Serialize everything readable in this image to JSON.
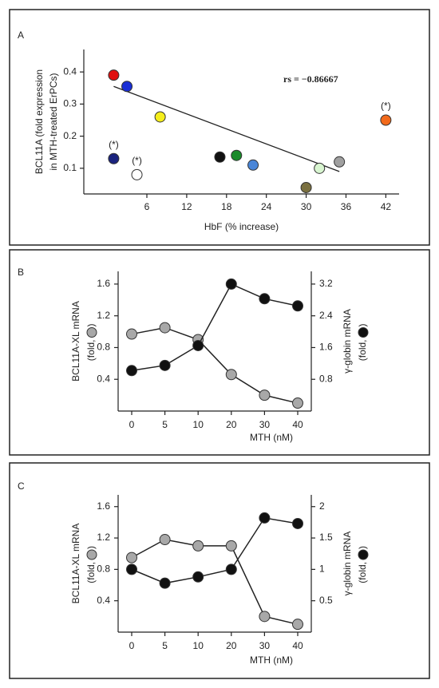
{
  "chart_data": [
    {
      "type": "scatter",
      "panel": "A",
      "annotation": "rs = −0.86667",
      "xlabel": "HbF (% increase)",
      "ylabel_lines": [
        "BCL11A (fold expression",
        "in MTH-treated ErPCs)"
      ],
      "x": [
        1,
        3,
        1,
        4.5,
        8,
        17,
        19.5,
        22,
        30,
        32,
        35,
        42
      ],
      "y": [
        0.39,
        0.355,
        0.13,
        0.08,
        0.26,
        0.135,
        0.14,
        0.11,
        0.04,
        0.1,
        0.12,
        0.25
      ],
      "colors": [
        "#e01010",
        "#1a2fd6",
        "#1a237e",
        "#ffffff",
        "#f5ee1c",
        "#111111",
        "#1a8a2a",
        "#4a86d8",
        "#7a7040",
        "#d8f5d0",
        "#a0a0a0",
        "#f26a1b"
      ],
      "point_labels": [
        null,
        null,
        "(*)",
        "(*)",
        null,
        null,
        null,
        null,
        null,
        null,
        null,
        "(*)"
      ],
      "trendline": {
        "x": [
          1,
          35
        ],
        "y": [
          0.355,
          0.09
        ]
      },
      "xlim": [
        -3.5,
        44
      ],
      "ylim": [
        0.02,
        0.47
      ],
      "xticks": [
        6,
        12,
        18,
        24,
        30,
        36,
        42
      ],
      "yticks": [
        0.1,
        0.2,
        0.3,
        0.4
      ]
    },
    {
      "type": "dual_line",
      "panel": "B",
      "xlabel": "MTH (nM)",
      "ylabel": "BCL11A-XL mRNA",
      "y2label": "γ-globin mRNA",
      "unit_open": "(fold,",
      "unit_close": ")",
      "categories": [
        "0",
        "5",
        "10",
        "20",
        "30",
        "40"
      ],
      "series": [
        {
          "color": "#a8a8a8",
          "values": [
            0.97,
            1.05,
            0.9,
            0.46,
            0.2,
            0.1
          ]
        },
        {
          "color": "#111111",
          "axis": "y2",
          "values": [
            1.02,
            1.15,
            1.65,
            3.2,
            2.83,
            2.65
          ]
        }
      ],
      "ylim": [
        0,
        1.76
      ],
      "yticks": [
        0.4,
        0.8,
        1.2,
        1.6
      ],
      "y2lim": [
        0,
        3.52
      ],
      "y2ticks": [
        0.8,
        1.6,
        2.4,
        3.2
      ]
    },
    {
      "type": "dual_line",
      "panel": "C",
      "xlabel": "MTH (nM)",
      "ylabel": "BCL11A-XL mRNA",
      "y2label": "γ-globin mRNA",
      "unit_open": "(fold,",
      "unit_close": ")",
      "categories": [
        "0",
        "5",
        "10",
        "20",
        "30",
        "40"
      ],
      "series": [
        {
          "color": "#a8a8a8",
          "values": [
            0.95,
            1.18,
            1.1,
            1.1,
            0.2,
            0.1
          ]
        },
        {
          "color": "#111111",
          "axis": "y2",
          "values": [
            1.0,
            0.78,
            0.88,
            1.0,
            1.82,
            1.73
          ]
        }
      ],
      "ylim": [
        0,
        1.75
      ],
      "yticks": [
        0.4,
        0.8,
        1.2,
        1.6
      ],
      "y2lim": [
        0,
        2.1875
      ],
      "y2ticks": [
        0.5,
        1,
        1.5,
        2
      ]
    }
  ]
}
